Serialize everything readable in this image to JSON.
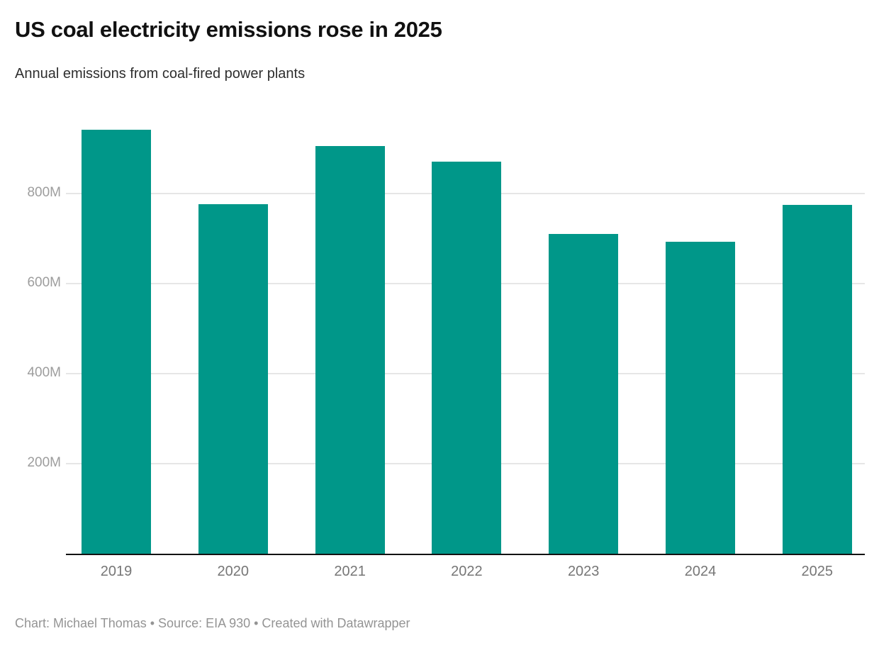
{
  "header": {
    "title": "US coal electricity emissions rose in 2025",
    "subtitle": "Annual emissions from coal-fired power plants"
  },
  "footer": {
    "text": "Chart: Michael Thomas • Source: EIA 930 • Created with Datawrapper"
  },
  "chart_data": {
    "type": "bar",
    "title": "US coal electricity emissions rose in 2025",
    "subtitle": "Annual emissions from coal-fired power plants",
    "categories": [
      "2019",
      "2020",
      "2021",
      "2022",
      "2023",
      "2024",
      "2025"
    ],
    "values": [
      943,
      777,
      907,
      872,
      711,
      693,
      776
    ],
    "unit_suffix": "M",
    "xlabel": "",
    "ylabel": "",
    "ylim": [
      0,
      978
    ],
    "yticks": [
      {
        "value": 200,
        "label": "200M"
      },
      {
        "value": 400,
        "label": "400M"
      },
      {
        "value": 600,
        "label": "600M"
      },
      {
        "value": 800,
        "label": "800M"
      }
    ],
    "grid": "horizontal",
    "legend": "none",
    "bar_color": "#009789",
    "source_note": "Chart: Michael Thomas • Source: EIA 930 • Created with Datawrapper"
  }
}
